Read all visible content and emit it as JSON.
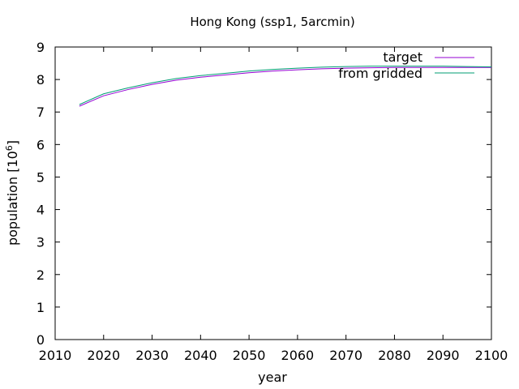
{
  "chart_data": {
    "type": "line",
    "title": "Hong Kong (ssp1, 5arcmin)",
    "xlabel": "year",
    "ylabel_prefix": "population [10",
    "ylabel_exponent": "6",
    "ylabel_suffix": "]",
    "xlim": [
      2010,
      2100
    ],
    "ylim": [
      0,
      9
    ],
    "xticks": [
      2010,
      2020,
      2030,
      2040,
      2050,
      2060,
      2070,
      2080,
      2090,
      2100
    ],
    "yticks": [
      0,
      1,
      2,
      3,
      4,
      5,
      6,
      7,
      8,
      9
    ],
    "grid": false,
    "legend_position": "top-right",
    "series": [
      {
        "name": "target",
        "color": "#9400d3",
        "x": [
          2015,
          2020,
          2025,
          2030,
          2035,
          2040,
          2045,
          2050,
          2055,
          2060,
          2065,
          2070,
          2075,
          2080,
          2085,
          2090,
          2095,
          2100
        ],
        "y": [
          7.18,
          7.5,
          7.69,
          7.85,
          7.98,
          8.07,
          8.14,
          8.21,
          8.26,
          8.3,
          8.33,
          8.35,
          8.36,
          8.37,
          8.37,
          8.37,
          8.37,
          8.37
        ]
      },
      {
        "name": "from gridded",
        "color": "#009e73",
        "x": [
          2015,
          2020,
          2025,
          2030,
          2035,
          2040,
          2045,
          2050,
          2055,
          2060,
          2065,
          2070,
          2075,
          2080,
          2085,
          2090,
          2095,
          2100
        ],
        "y": [
          7.23,
          7.56,
          7.74,
          7.9,
          8.03,
          8.12,
          8.19,
          8.26,
          8.31,
          8.35,
          8.38,
          8.4,
          8.41,
          8.41,
          8.41,
          8.41,
          8.4,
          8.39
        ]
      }
    ]
  }
}
